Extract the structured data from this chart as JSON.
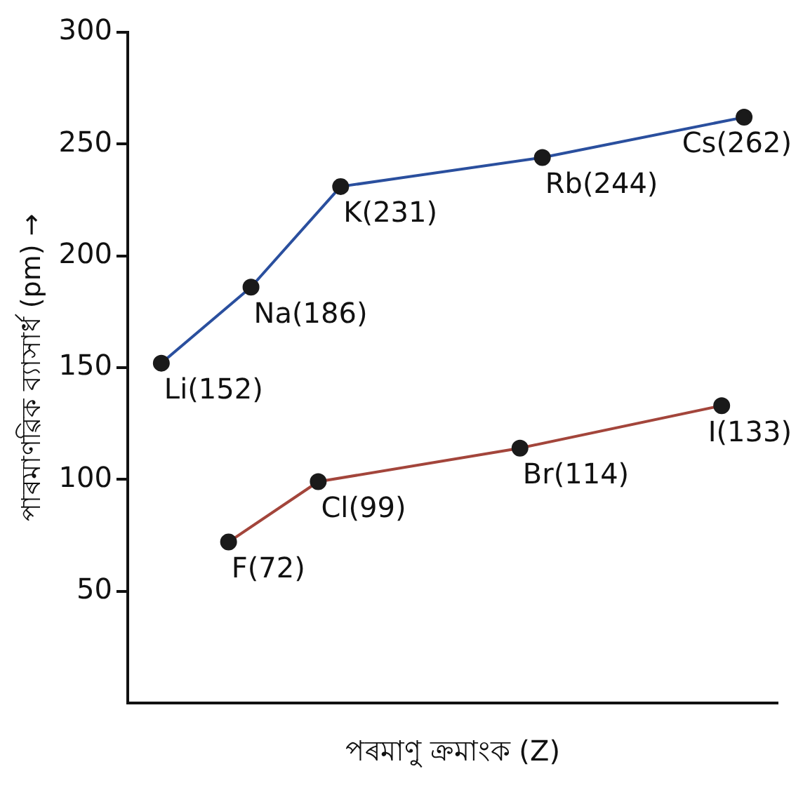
{
  "chart_data": {
    "type": "line",
    "xlabel": "পৰমাণু ক্ৰমাংক (Z)",
    "ylabel": "পাৰমাণৱিক ব্যাসাৰ্ধ (pm) →",
    "categories": [
      null,
      null,
      null,
      null,
      null,
      null,
      null,
      null,
      null,
      null,
      null,
      null,
      null,
      null,
      null,
      null,
      null,
      null,
      null,
      null,
      null,
      null,
      null,
      null,
      null,
      null,
      null,
      null,
      null
    ],
    "ylim": [
      0,
      300
    ],
    "yticks": [
      50,
      100,
      150,
      200,
      250,
      300
    ],
    "legend": false,
    "marker": "circle",
    "line_style": "solid",
    "tick_labels": "y",
    "series": [
      {
        "color": "#2a4f9e",
        "values": [
          null,
          152,
          null,
          null,
          null,
          186,
          null,
          null,
          null,
          231,
          null,
          null,
          null,
          null,
          null,
          null,
          null,
          null,
          244,
          null,
          null,
          null,
          null,
          null,
          null,
          null,
          null,
          262,
          null
        ],
        "value_labels": [
          null,
          "Li(152)",
          null,
          null,
          null,
          "Na(186)",
          null,
          null,
          null,
          "K(231)",
          null,
          null,
          null,
          null,
          null,
          null,
          null,
          null,
          "Rb(244)",
          null,
          null,
          null,
          null,
          null,
          null,
          null,
          null,
          "Cs(262)",
          null
        ]
      },
      {
        "color": "#a3453b",
        "values": [
          null,
          null,
          null,
          null,
          72,
          null,
          null,
          null,
          99,
          null,
          null,
          null,
          null,
          null,
          null,
          null,
          null,
          114,
          null,
          null,
          null,
          null,
          null,
          null,
          null,
          null,
          133,
          null,
          null
        ],
        "value_labels": [
          null,
          null,
          null,
          null,
          "F(72)",
          null,
          null,
          null,
          "Cl(99)",
          null,
          null,
          null,
          null,
          null,
          null,
          null,
          null,
          "Br(114)",
          null,
          null,
          null,
          null,
          null,
          null,
          null,
          null,
          "I(133)",
          null,
          null
        ]
      }
    ]
  }
}
